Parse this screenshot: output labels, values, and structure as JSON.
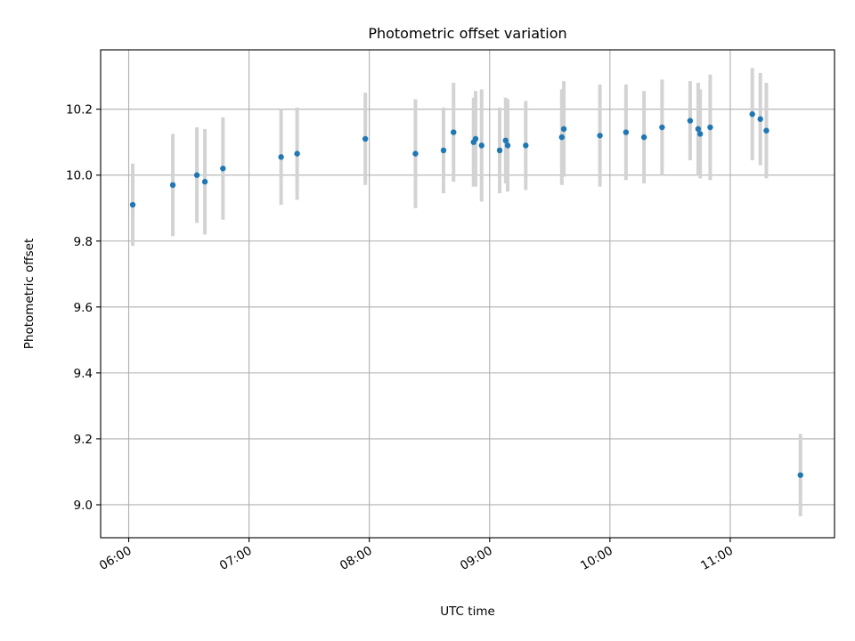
{
  "chart_data": {
    "type": "scatter",
    "title": "Photometric offset variation",
    "xlabel": "UTC time",
    "ylabel": "Photometric offset",
    "x_tick_labels": [
      "06:00",
      "07:00",
      "08:00",
      "09:00",
      "10:00",
      "11:00"
    ],
    "y_tick_labels": [
      "9.0",
      "9.2",
      "9.4",
      "9.6",
      "9.8",
      "10.0",
      "10.2"
    ],
    "xlim": [
      "05:46",
      "11:52"
    ],
    "ylim": [
      8.9,
      10.38
    ],
    "grid": true,
    "colors": {
      "point": "#1f77b4",
      "errorbar": "#d3d3d3",
      "grid": "#b0b0b0",
      "axes": "#000000"
    },
    "points": [
      {
        "x": "06:02",
        "y": 9.91,
        "err": 0.125
      },
      {
        "x": "06:22",
        "y": 9.97,
        "err": 0.155
      },
      {
        "x": "06:34",
        "y": 10.0,
        "err": 0.145
      },
      {
        "x": "06:38",
        "y": 9.98,
        "err": 0.16
      },
      {
        "x": "06:47",
        "y": 10.02,
        "err": 0.155
      },
      {
        "x": "07:16",
        "y": 10.055,
        "err": 0.145
      },
      {
        "x": "07:24",
        "y": 10.065,
        "err": 0.14
      },
      {
        "x": "07:58",
        "y": 10.11,
        "err": 0.14
      },
      {
        "x": "08:23",
        "y": 10.065,
        "err": 0.165
      },
      {
        "x": "08:37",
        "y": 10.075,
        "err": 0.13
      },
      {
        "x": "08:42",
        "y": 10.13,
        "err": 0.15
      },
      {
        "x": "08:52",
        "y": 10.1,
        "err": 0.135
      },
      {
        "x": "08:53",
        "y": 10.11,
        "err": 0.145
      },
      {
        "x": "08:56",
        "y": 10.09,
        "err": 0.17
      },
      {
        "x": "09:05",
        "y": 10.075,
        "err": 0.13
      },
      {
        "x": "09:08",
        "y": 10.105,
        "err": 0.13
      },
      {
        "x": "09:09",
        "y": 10.09,
        "err": 0.14
      },
      {
        "x": "09:18",
        "y": 10.09,
        "err": 0.135
      },
      {
        "x": "09:36",
        "y": 10.115,
        "err": 0.145
      },
      {
        "x": "09:37",
        "y": 10.14,
        "err": 0.145
      },
      {
        "x": "09:55",
        "y": 10.12,
        "err": 0.155
      },
      {
        "x": "10:08",
        "y": 10.13,
        "err": 0.145
      },
      {
        "x": "10:17",
        "y": 10.115,
        "err": 0.14
      },
      {
        "x": "10:26",
        "y": 10.145,
        "err": 0.145
      },
      {
        "x": "10:40",
        "y": 10.165,
        "err": 0.12
      },
      {
        "x": "10:44",
        "y": 10.14,
        "err": 0.14
      },
      {
        "x": "10:45",
        "y": 10.125,
        "err": 0.135
      },
      {
        "x": "10:50",
        "y": 10.145,
        "err": 0.16
      },
      {
        "x": "11:11",
        "y": 10.185,
        "err": 0.14
      },
      {
        "x": "11:15",
        "y": 10.17,
        "err": 0.14
      },
      {
        "x": "11:18",
        "y": 10.135,
        "err": 0.145
      },
      {
        "x": "11:35",
        "y": 9.09,
        "err": 0.125
      }
    ]
  }
}
